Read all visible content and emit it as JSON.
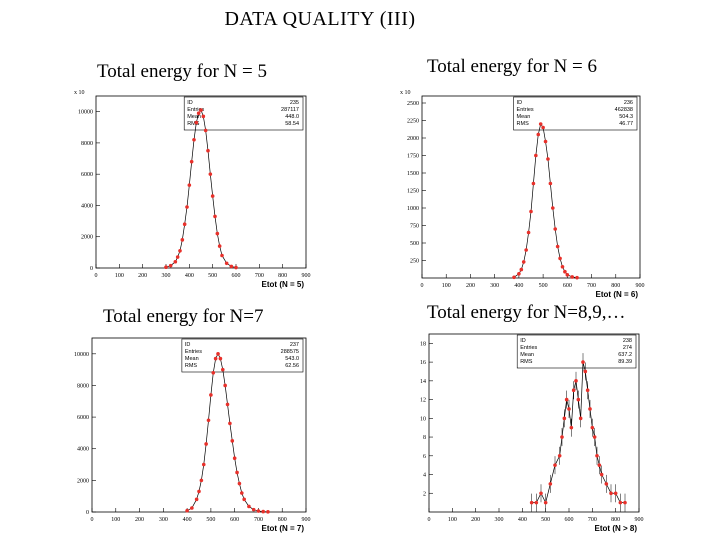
{
  "page": {
    "title": "DATA QUALITY (III)"
  },
  "colors": {
    "marker": "#e8302a",
    "line": "#000000",
    "frame": "#000000"
  },
  "chart_data": [
    {
      "id": "tl",
      "type": "scatter",
      "title": "Total energy for N = 5",
      "xlabel": "Etot (N = 5)",
      "ylabel": "",
      "y_exponent_label": "x 10",
      "xlim": [
        0,
        900
      ],
      "ylim": [
        0,
        11000
      ],
      "x_ticks": [
        0,
        100,
        200,
        300,
        400,
        500,
        600,
        700,
        800,
        900
      ],
      "y_ticks": [
        0,
        2000,
        4000,
        6000,
        8000,
        10000
      ],
      "y_tick_labels": [
        "0",
        "2000",
        "4000",
        "6000",
        "8000",
        "10000"
      ],
      "stats": [
        {
          "label": "ID",
          "value": "235"
        },
        {
          "label": "Entries",
          "value": "287117"
        },
        {
          "label": "Mean",
          "value": "448.0"
        },
        {
          "label": "RMS",
          "value": "58.54"
        }
      ],
      "series": [
        {
          "x": [
            300,
            320,
            340,
            350,
            360,
            370,
            380,
            390,
            400,
            410,
            420,
            430,
            440,
            450,
            460,
            470,
            480,
            490,
            500,
            510,
            520,
            530,
            540,
            560,
            580,
            600
          ],
          "y": [
            50,
            150,
            400,
            700,
            1100,
            1800,
            2800,
            3900,
            5300,
            6800,
            8200,
            9300,
            9900,
            10100,
            9700,
            8800,
            7500,
            6000,
            4600,
            3300,
            2200,
            1400,
            800,
            300,
            100,
            30
          ]
        }
      ]
    },
    {
      "id": "tr",
      "type": "scatter",
      "title": "Total energy for N = 6",
      "xlabel": "Etot (N = 6)",
      "ylabel": "",
      "y_exponent_label": "x 10",
      "xlim": [
        0,
        900
      ],
      "ylim": [
        0,
        2600
      ],
      "x_ticks": [
        0,
        100,
        200,
        300,
        400,
        500,
        600,
        700,
        800,
        900
      ],
      "y_ticks": [
        250,
        500,
        750,
        1000,
        1250,
        1500,
        1750,
        2000,
        2250,
        2500
      ],
      "y_tick_labels": [
        "250",
        "500",
        "750",
        "1000",
        "1250",
        "1500",
        "1750",
        "2000",
        "2250",
        "2500"
      ],
      "stats": [
        {
          "label": "ID",
          "value": "236"
        },
        {
          "label": "Entries",
          "value": "462838"
        },
        {
          "label": "Mean",
          "value": "504.3"
        },
        {
          "label": "RMS",
          "value": "46.77"
        }
      ],
      "series": [
        {
          "x": [
            380,
            400,
            410,
            420,
            430,
            440,
            450,
            460,
            470,
            480,
            490,
            500,
            510,
            520,
            530,
            540,
            550,
            560,
            570,
            580,
            590,
            600,
            620,
            640
          ],
          "y": [
            10,
            60,
            120,
            230,
            400,
            650,
            950,
            1350,
            1750,
            2050,
            2200,
            2150,
            1950,
            1700,
            1350,
            1000,
            700,
            450,
            280,
            160,
            90,
            45,
            15,
            5
          ]
        }
      ]
    },
    {
      "id": "bl",
      "type": "scatter",
      "title": "Total energy for N=7",
      "xlabel": "Etot (N = 7)",
      "ylabel": "",
      "y_exponent_label": "",
      "xlim": [
        0,
        900
      ],
      "ylim": [
        0,
        11000
      ],
      "x_ticks": [
        0,
        100,
        200,
        300,
        400,
        500,
        600,
        700,
        800,
        900
      ],
      "y_ticks": [
        0,
        2000,
        4000,
        6000,
        8000,
        10000
      ],
      "y_tick_labels": [
        "0",
        "2000",
        "4000",
        "6000",
        "8000",
        "10000"
      ],
      "stats": [
        {
          "label": "ID",
          "value": "237"
        },
        {
          "label": "Entries",
          "value": "288575"
        },
        {
          "label": "Mean",
          "value": "543.0"
        },
        {
          "label": "RMS",
          "value": "62.56"
        }
      ],
      "series": [
        {
          "x": [
            400,
            420,
            440,
            450,
            460,
            470,
            480,
            490,
            500,
            510,
            520,
            530,
            540,
            550,
            560,
            570,
            580,
            590,
            600,
            610,
            620,
            630,
            640,
            660,
            680,
            700,
            720,
            740
          ],
          "y": [
            80,
            250,
            800,
            1300,
            2000,
            3000,
            4300,
            5800,
            7400,
            8800,
            9700,
            10000,
            9700,
            9000,
            8000,
            6800,
            5600,
            4500,
            3400,
            2500,
            1800,
            1200,
            800,
            350,
            150,
            60,
            25,
            10
          ]
        }
      ]
    },
    {
      "id": "br",
      "type": "scatter",
      "title": "Total energy for N=8,9,…",
      "xlabel": "Etot (N > 8)",
      "ylabel": "",
      "y_exponent_label": "",
      "xlim": [
        0,
        900
      ],
      "ylim": [
        0,
        19
      ],
      "x_ticks": [
        0,
        100,
        200,
        300,
        400,
        500,
        600,
        700,
        800,
        900
      ],
      "y_ticks": [
        2,
        4,
        6,
        8,
        10,
        12,
        14,
        16,
        18
      ],
      "y_tick_labels": [
        "2",
        "4",
        "6",
        "8",
        "10",
        "12",
        "14",
        "16",
        "18"
      ],
      "stats": [
        {
          "label": "ID",
          "value": "238"
        },
        {
          "label": "Entries",
          "value": "274"
        },
        {
          "label": "Mean",
          "value": "637.2"
        },
        {
          "label": "RMS",
          "value": "89.39"
        }
      ],
      "series": [
        {
          "x": [
            440,
            460,
            480,
            500,
            520,
            540,
            560,
            570,
            580,
            590,
            600,
            610,
            620,
            630,
            640,
            650,
            660,
            670,
            680,
            690,
            700,
            710,
            720,
            730,
            740,
            760,
            780,
            800,
            820,
            840
          ],
          "y": [
            1,
            1,
            2,
            1,
            3,
            5,
            6,
            8,
            10,
            12,
            11,
            9,
            13,
            14,
            12,
            10,
            16,
            15,
            13,
            11,
            9,
            8,
            6,
            5,
            4,
            3,
            2,
            2,
            1,
            1
          ]
        }
      ]
    }
  ]
}
